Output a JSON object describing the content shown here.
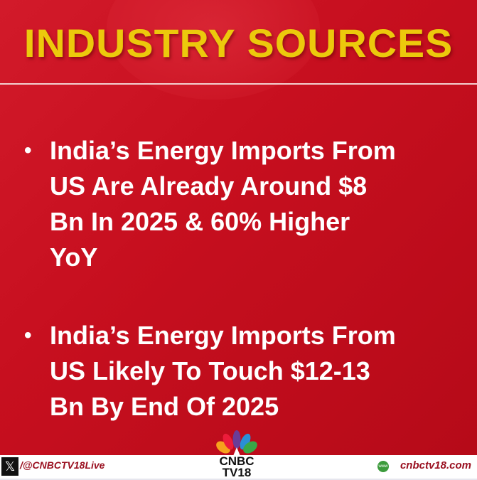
{
  "header": {
    "title": "INDUSTRY SOURCES"
  },
  "bullets": [
    {
      "lines": [
        "India’s Energy Imports From",
        "US Are Already Around $8",
        "Bn In 2025 & 60% Higher",
        "YoY"
      ]
    },
    {
      "lines": [
        "India’s Energy Imports From",
        "US Likely To Touch $12-13",
        "Bn By End Of 2025"
      ]
    }
  ],
  "footer": {
    "handle": "/@CNBCTV18Live",
    "website": "cnbctv18.com",
    "logo_text_1": "CNBC",
    "logo_text_2": "TV18",
    "www_label": "www"
  },
  "colors": {
    "background": "#c70f1f",
    "title": "#ecc90c",
    "footer_text": "#9a1020"
  }
}
